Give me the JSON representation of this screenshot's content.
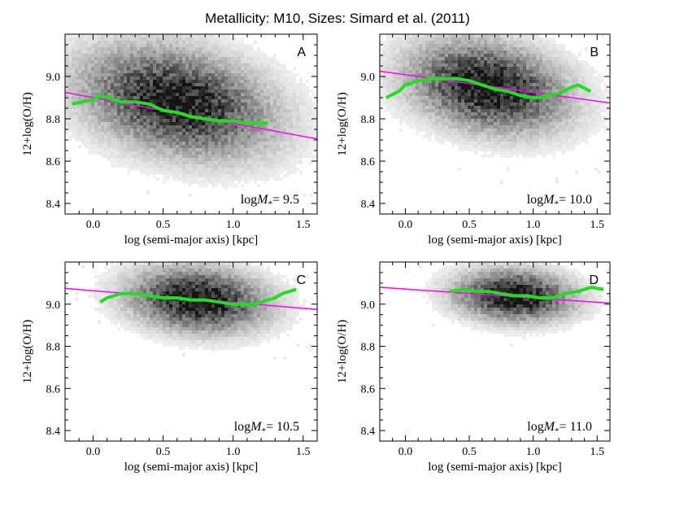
{
  "figure": {
    "title": "Metallicity: M10,   Sizes: Simard et al. (2011)"
  },
  "chart_data": [
    {
      "type": "scatter",
      "panel": "A",
      "mass_label": {
        "prefix": "log",
        "symbol": "M",
        "subscript": "*",
        "value": "= 9.5"
      },
      "xlabel": "log (semi-major axis) [kpc]",
      "ylabel": "12+log(O/H)",
      "xlim": [
        -0.2,
        1.6
      ],
      "ylim": [
        8.35,
        9.2
      ],
      "xticks": [
        "0.0",
        "0.5",
        "1.0",
        "1.5"
      ],
      "yticks": [
        "8.4",
        "8.6",
        "8.8",
        "9.0"
      ],
      "density": {
        "cx": 0.6,
        "cy": 8.88,
        "sx": 0.45,
        "sy": 0.17,
        "rho": -0.3,
        "peak": 0.95
      },
      "green_curve": {
        "color": "#22dd22",
        "x": [
          -0.15,
          -0.08,
          0.0,
          0.05,
          0.1,
          0.15,
          0.2,
          0.3,
          0.4,
          0.5,
          0.6,
          0.7,
          0.8,
          0.9,
          1.0,
          1.1,
          1.25
        ],
        "y": [
          8.87,
          8.88,
          8.89,
          8.91,
          8.9,
          8.89,
          8.88,
          8.88,
          8.87,
          8.84,
          8.83,
          8.81,
          8.8,
          8.79,
          8.79,
          8.78,
          8.78
        ]
      },
      "fit_line": {
        "color": "#ff00ff",
        "x": [
          -0.2,
          1.6
        ],
        "y": [
          8.925,
          8.705
        ]
      }
    },
    {
      "type": "scatter",
      "panel": "B",
      "mass_label": {
        "prefix": "log",
        "symbol": "M",
        "subscript": "*",
        "value": "= 10.0"
      },
      "xlabel": "log (semi-major axis) [kpc]",
      "ylabel": "12+log(O/H)",
      "xlim": [
        -0.2,
        1.6
      ],
      "ylim": [
        8.35,
        9.2
      ],
      "xticks": [
        "0.0",
        "0.5",
        "1.0",
        "1.5"
      ],
      "yticks": [
        "8.4",
        "8.6",
        "8.8",
        "9.0"
      ],
      "density": {
        "cx": 0.65,
        "cy": 8.95,
        "sx": 0.4,
        "sy": 0.14,
        "rho": -0.25,
        "peak": 1.0
      },
      "green_curve": {
        "color": "#22dd22",
        "x": [
          -0.15,
          -0.05,
          0.0,
          0.1,
          0.2,
          0.3,
          0.4,
          0.5,
          0.6,
          0.7,
          0.8,
          0.9,
          1.0,
          1.05,
          1.1,
          1.2,
          1.3,
          1.35,
          1.45
        ],
        "y": [
          8.9,
          8.93,
          8.96,
          8.98,
          8.99,
          8.99,
          8.99,
          8.98,
          8.96,
          8.94,
          8.93,
          8.91,
          8.9,
          8.9,
          8.91,
          8.92,
          8.95,
          8.96,
          8.93
        ]
      },
      "fit_line": {
        "color": "#ff00ff",
        "x": [
          -0.2,
          1.6
        ],
        "y": [
          9.025,
          8.875
        ]
      }
    },
    {
      "type": "scatter",
      "panel": "C",
      "mass_label": {
        "prefix": "log",
        "symbol": "M",
        "subscript": "*",
        "value": "= 10.5"
      },
      "xlabel": "log (semi-major axis) [kpc]",
      "ylabel": "12+log(O/H)",
      "xlim": [
        -0.2,
        1.6
      ],
      "ylim": [
        8.35,
        9.2
      ],
      "xticks": [
        "0.0",
        "0.5",
        "1.0",
        "1.5"
      ],
      "yticks": [
        "8.4",
        "8.6",
        "8.8",
        "9.0"
      ],
      "density": {
        "cx": 0.75,
        "cy": 9.02,
        "sx": 0.32,
        "sy": 0.1,
        "rho": -0.15,
        "peak": 1.0
      },
      "green_curve": {
        "color": "#22dd22",
        "x": [
          0.05,
          0.1,
          0.2,
          0.3,
          0.4,
          0.5,
          0.6,
          0.7,
          0.8,
          0.9,
          1.0,
          1.1,
          1.15,
          1.2,
          1.3,
          1.35,
          1.45
        ],
        "y": [
          9.01,
          9.03,
          9.05,
          9.05,
          9.04,
          9.03,
          9.03,
          9.02,
          9.02,
          9.01,
          9.0,
          9.0,
          9.0,
          9.01,
          9.03,
          9.05,
          9.07
        ]
      },
      "fit_line": {
        "color": "#ff00ff",
        "x": [
          -0.2,
          1.6
        ],
        "y": [
          9.075,
          8.975
        ]
      }
    },
    {
      "type": "scatter",
      "panel": "D",
      "mass_label": {
        "prefix": "log",
        "symbol": "M",
        "subscript": "*",
        "value": "= 11.0"
      },
      "xlabel": "log (semi-major axis) [kpc]",
      "ylabel": "12+log(O/H)",
      "xlim": [
        -0.2,
        1.6
      ],
      "ylim": [
        8.35,
        9.2
      ],
      "xticks": [
        "0.0",
        "0.5",
        "1.0",
        "1.5"
      ],
      "yticks": [
        "8.4",
        "8.6",
        "8.8",
        "9.0"
      ],
      "density": {
        "cx": 0.85,
        "cy": 9.04,
        "sx": 0.3,
        "sy": 0.08,
        "rho": -0.1,
        "peak": 1.0
      },
      "green_curve": {
        "color": "#22dd22",
        "x": [
          0.35,
          0.45,
          0.55,
          0.65,
          0.75,
          0.85,
          0.95,
          1.05,
          1.15,
          1.25,
          1.35,
          1.45,
          1.55
        ],
        "y": [
          9.06,
          9.07,
          9.06,
          9.06,
          9.05,
          9.04,
          9.04,
          9.03,
          9.03,
          9.05,
          9.06,
          9.08,
          9.07
        ]
      },
      "fit_line": {
        "color": "#ff00ff",
        "x": [
          -0.2,
          1.6
        ],
        "y": [
          9.08,
          9.005
        ]
      }
    }
  ]
}
